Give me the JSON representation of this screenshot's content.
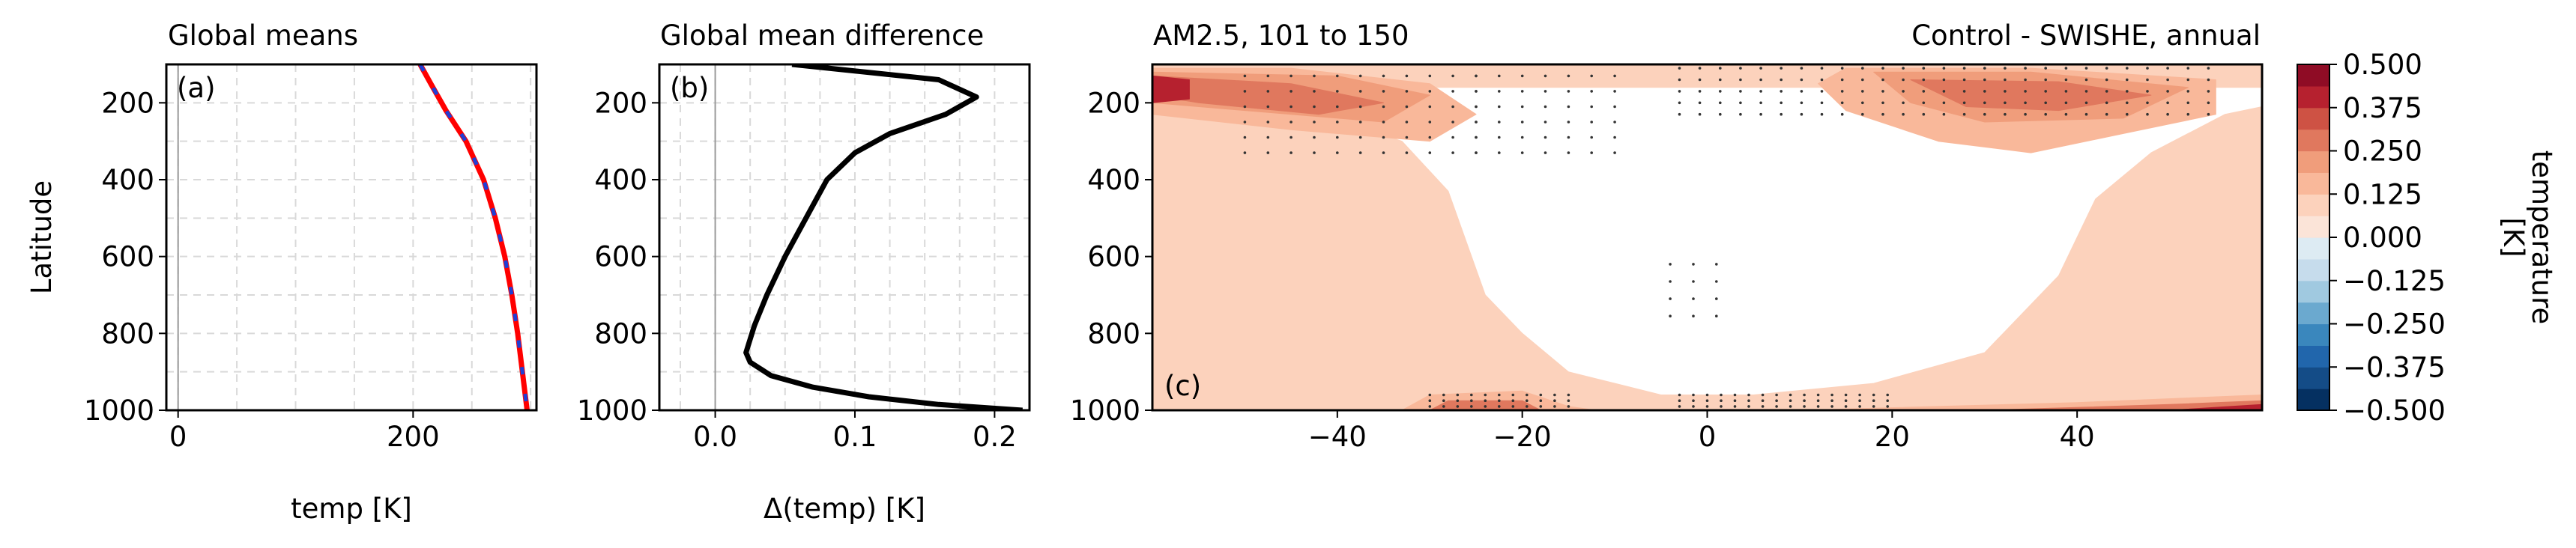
{
  "chart_data": [
    {
      "id": "a",
      "type": "line",
      "title": "Global means",
      "panel_label": "(a)",
      "xlabel": "temp [K]",
      "ylabel": "Latitude",
      "xlim": [
        -10,
        305
      ],
      "ylim": [
        1000,
        100
      ],
      "xticks": [
        0,
        200
      ],
      "yticks": [
        200,
        400,
        600,
        800,
        1000
      ],
      "grid": true,
      "series": [
        {
          "color": "#ff0000",
          "style": "solid",
          "x": [
            206,
            215,
            228,
            245,
            260,
            270,
            278,
            284,
            289,
            293,
            297
          ],
          "y": [
            100,
            150,
            220,
            300,
            400,
            500,
            600,
            700,
            800,
            900,
            1000
          ]
        },
        {
          "color": "#1f3fd6",
          "style": "dashed",
          "x": [
            206,
            215,
            228,
            245,
            260,
            270,
            278,
            284,
            289,
            293,
            297
          ],
          "y": [
            100,
            150,
            220,
            300,
            400,
            500,
            600,
            700,
            800,
            900,
            1000
          ]
        }
      ]
    },
    {
      "id": "b",
      "type": "line",
      "title": "Global mean difference",
      "panel_label": "(b)",
      "xlabel": "Δ(temp) [K]",
      "xlim": [
        -0.04,
        0.225
      ],
      "ylim": [
        1000,
        100
      ],
      "xticks": [
        0.0,
        0.1,
        0.2
      ],
      "xtick_labels": [
        "0.0",
        "0.1",
        "0.2"
      ],
      "yticks": [
        200,
        400,
        600,
        800,
        1000
      ],
      "grid": true,
      "series": [
        {
          "color": "#000000",
          "style": "solid",
          "x": [
            0.055,
            0.16,
            0.187,
            0.165,
            0.125,
            0.1,
            0.08,
            0.065,
            0.05,
            0.037,
            0.028,
            0.022,
            0.025,
            0.04,
            0.07,
            0.11,
            0.16,
            0.22
          ],
          "y": [
            100,
            140,
            185,
            230,
            280,
            330,
            400,
            500,
            600,
            700,
            780,
            850,
            875,
            910,
            940,
            965,
            985,
            1000
          ]
        }
      ]
    },
    {
      "id": "c",
      "type": "heatmap",
      "title": "AM2.5, 101 to 150",
      "title_right": "Control - SWISHE, annual",
      "panel_label": "(c)",
      "xlim": [
        -60,
        60
      ],
      "ylim": [
        1000,
        100
      ],
      "xticks": [
        -40,
        -20,
        0,
        20,
        40
      ],
      "yticks": [
        200,
        400,
        600,
        800,
        1000
      ],
      "colorbar": {
        "label_line1": "temperature",
        "label_line2": "[K]",
        "vmin": -0.5,
        "vmax": 0.5,
        "ticks": [
          "0.500",
          "0.375",
          "0.250",
          "0.125",
          "0.000",
          "−0.125",
          "−0.250",
          "−0.375",
          "−0.500"
        ],
        "levels": [
          "#053061",
          "#144c87",
          "#2166ac",
          "#3a87bd",
          "#6ba9cf",
          "#a0c9e0",
          "#c6dcec",
          "#ddebf3",
          "#fbe4d8",
          "#fcd2bc",
          "#f9b89a",
          "#f09d7b",
          "#e0785e",
          "#ce5244",
          "#b6212f",
          "#8f0c25"
        ]
      },
      "contours": [
        {
          "color": "#fcd2bc",
          "points": [
            [
              -60,
              100
            ],
            [
              60,
              100
            ],
            [
              60,
              1000
            ],
            [
              -60,
              1000
            ],
            [
              -60,
              230
            ],
            [
              -55,
              230
            ],
            [
              -40,
              240
            ],
            [
              -33,
              300
            ],
            [
              -28,
              430
            ],
            [
              -24,
              700
            ],
            [
              -20,
              800
            ],
            [
              -15,
              900
            ],
            [
              -5,
              960
            ],
            [
              5,
              960
            ],
            [
              18,
              930
            ],
            [
              30,
              850
            ],
            [
              38,
              650
            ],
            [
              42,
              450
            ],
            [
              48,
              330
            ],
            [
              56,
              230
            ],
            [
              60,
              210
            ],
            [
              60,
              160
            ],
            [
              -60,
              160
            ]
          ]
        },
        {
          "color": "#f9b89a",
          "points": [
            [
              -60,
              110
            ],
            [
              -45,
              110
            ],
            [
              -30,
              150
            ],
            [
              -25,
              230
            ],
            [
              -30,
              300
            ],
            [
              -45,
              270
            ],
            [
              -60,
              230
            ]
          ]
        },
        {
          "color": "#f9b89a",
          "points": [
            [
              15,
              110
            ],
            [
              35,
              110
            ],
            [
              55,
              140
            ],
            [
              55,
              230
            ],
            [
              45,
              280
            ],
            [
              35,
              330
            ],
            [
              25,
              300
            ],
            [
              15,
              220
            ],
            [
              12,
              150
            ]
          ]
        },
        {
          "color": "#f09d7b",
          "points": [
            [
              -60,
              120
            ],
            [
              -40,
              130
            ],
            [
              -30,
              180
            ],
            [
              -35,
              250
            ],
            [
              -50,
              220
            ],
            [
              -60,
              200
            ]
          ]
        },
        {
          "color": "#f09d7b",
          "points": [
            [
              18,
              120
            ],
            [
              35,
              120
            ],
            [
              52,
              160
            ],
            [
              45,
              240
            ],
            [
              30,
              250
            ],
            [
              22,
              200
            ]
          ]
        },
        {
          "color": "#e0785e",
          "points": [
            [
              -60,
              130
            ],
            [
              -45,
              150
            ],
            [
              -35,
              200
            ],
            [
              -42,
              230
            ],
            [
              -55,
              200
            ],
            [
              -60,
              180
            ]
          ]
        },
        {
          "color": "#e0785e",
          "points": [
            [
              22,
              140
            ],
            [
              38,
              145
            ],
            [
              48,
              180
            ],
            [
              38,
              220
            ],
            [
              28,
              210
            ]
          ]
        },
        {
          "color": "#b6212f",
          "points": [
            [
              -60,
              130
            ],
            [
              -56,
              140
            ],
            [
              -56,
              190
            ],
            [
              -60,
              200
            ]
          ]
        },
        {
          "color": "#f9b89a",
          "points": [
            [
              -33,
              1000
            ],
            [
              -30,
              960
            ],
            [
              -20,
              950
            ],
            [
              -15,
              990
            ],
            [
              -12,
              1000
            ]
          ]
        },
        {
          "color": "#e0785e",
          "points": [
            [
              -30,
              1000
            ],
            [
              -28,
              975
            ],
            [
              -20,
              975
            ],
            [
              -18,
              1000
            ]
          ]
        },
        {
          "color": "#f9b89a",
          "points": [
            [
              10,
              1000
            ],
            [
              40,
              980
            ],
            [
              60,
              960
            ],
            [
              60,
              1000
            ]
          ]
        },
        {
          "color": "#e0785e",
          "points": [
            [
              30,
              1000
            ],
            [
              50,
              985
            ],
            [
              60,
              975
            ],
            [
              60,
              1000
            ]
          ]
        },
        {
          "color": "#b6212f",
          "points": [
            [
              50,
              1000
            ],
            [
              60,
              985
            ],
            [
              60,
              1000
            ]
          ]
        }
      ],
      "stipple": [
        {
          "x0": -50,
          "x1": -25,
          "y0": 130,
          "y1": 330,
          "dx": 2.5,
          "dy": 40
        },
        {
          "x0": -25,
          "x1": -10,
          "y0": 130,
          "y1": 330,
          "dx": 2.5,
          "dy": 40
        },
        {
          "x0": -3,
          "x1": 55,
          "y0": 110,
          "y1": 230,
          "dx": 2.2,
          "dy": 30
        },
        {
          "x0": -4,
          "x1": 1,
          "y0": 620,
          "y1": 760,
          "dx": 2.5,
          "dy": 45
        },
        {
          "x0": -30,
          "x1": -15,
          "y0": 960,
          "y1": 1000,
          "dx": 1.5,
          "dy": 15
        },
        {
          "x0": -3,
          "x1": 20,
          "y0": 960,
          "y1": 1000,
          "dx": 1.5,
          "dy": 15
        }
      ]
    }
  ]
}
